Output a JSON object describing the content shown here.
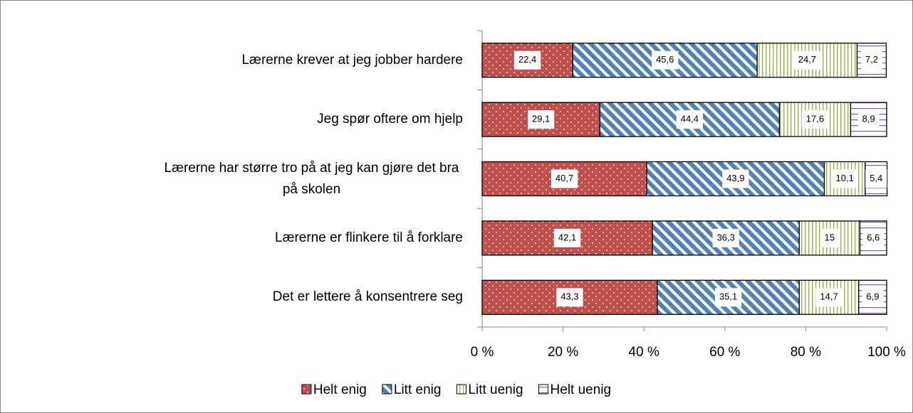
{
  "chart_data": {
    "type": "stacked-barh",
    "categories": [
      "Lærerne krever at jeg jobber hardere",
      "Jeg spør oftere om hjelp",
      "Lærerne har større tro på at jeg kan gjøre det bra på skolen",
      "Lærerne er flinkere til å forklare",
      "Det er lettere å konsentrere seg"
    ],
    "series": [
      {
        "name": "Helt enig",
        "color": "#c0504d",
        "pattern": "dots",
        "values": [
          22.4,
          29.1,
          40.7,
          42.1,
          43.3
        ],
        "value_labels": [
          "22,4",
          "29,1",
          "40,7",
          "42,1",
          "43,3"
        ]
      },
      {
        "name": "Litt enig",
        "color": "#4f81bd",
        "pattern": "diagonal",
        "values": [
          45.6,
          44.4,
          43.9,
          36.3,
          35.1
        ],
        "value_labels": [
          "45,6",
          "44,4",
          "43,9",
          "36,3",
          "35,1"
        ]
      },
      {
        "name": "Litt uenig",
        "color": "#9bbb59",
        "pattern": "vertical",
        "values": [
          24.7,
          17.6,
          10.1,
          15,
          14.7
        ],
        "value_labels": [
          "24,7",
          "17,6",
          "10,1",
          "15",
          "14,7"
        ]
      },
      {
        "name": "Helt uenig",
        "color": "#8064a2",
        "pattern": "horizontal",
        "values": [
          7.2,
          8.9,
          5.4,
          6.6,
          6.9
        ],
        "value_labels": [
          "7,2",
          "8,9",
          "5,4",
          "6,6",
          "6,9"
        ]
      }
    ],
    "xlim": [
      0,
      100
    ],
    "xticks": [
      {
        "value": 0,
        "label": "0 %"
      },
      {
        "value": 20,
        "label": "20 %"
      },
      {
        "value": 40,
        "label": "40 %"
      },
      {
        "value": 60,
        "label": "60 %"
      },
      {
        "value": 80,
        "label": "80 %"
      },
      {
        "value": 100,
        "label": "100 %"
      }
    ],
    "legend": "bottom"
  }
}
